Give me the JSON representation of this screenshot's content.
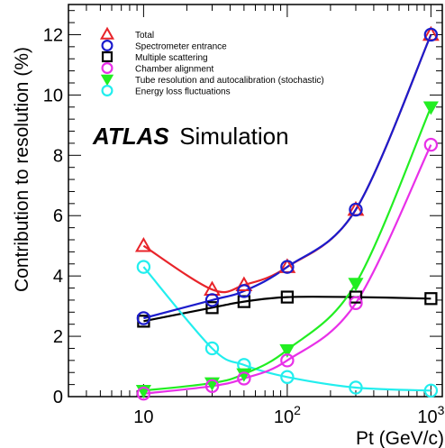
{
  "chart_data": {
    "type": "line",
    "xlabel": "Pt (GeV/c)",
    "ylabel": "Contribution to resolution (%)",
    "x_scale": "log",
    "xlim": [
      3,
      1200
    ],
    "ylim": [
      0,
      13
    ],
    "y_ticks": [
      "0",
      "2",
      "4",
      "6",
      "8",
      "10",
      "12"
    ],
    "x_ticks": [
      {
        "value": 10,
        "base": "10",
        "exp": ""
      },
      {
        "value": 100,
        "base": "10",
        "exp": "2"
      },
      {
        "value": 1000,
        "base": "10",
        "exp": "3"
      }
    ],
    "annotation": {
      "bold": "ATLAS",
      "normal": "Simulation"
    },
    "grid": false,
    "legend_position": "top-left",
    "series": [
      {
        "name": "Total",
        "color": "#e8242a",
        "marker": "triangle-up-open",
        "x": [
          10,
          30,
          50,
          100,
          300,
          1000
        ],
        "y": [
          5.0,
          3.55,
          3.7,
          4.3,
          6.2,
          12.0
        ]
      },
      {
        "name": "Spectrometer entrance",
        "color": "#1c1ccc",
        "marker": "circle-open",
        "x": [
          10,
          30,
          50,
          100,
          300,
          1000
        ],
        "y": [
          2.6,
          3.2,
          3.5,
          4.3,
          6.2,
          12.0
        ]
      },
      {
        "name": "Multiple scattering",
        "color": "#000000",
        "marker": "square-open",
        "x": [
          10,
          30,
          50,
          100,
          300,
          1000
        ],
        "y": [
          2.5,
          2.95,
          3.15,
          3.3,
          3.3,
          3.25
        ]
      },
      {
        "name": "Chamber alignment",
        "color": "#e830e8",
        "marker": "circle-open",
        "x": [
          10,
          30,
          50,
          100,
          300,
          1000
        ],
        "y": [
          0.1,
          0.35,
          0.6,
          1.2,
          3.1,
          8.35
        ]
      },
      {
        "name": "Tube resolution and autocalibration (stochastic)",
        "color": "#22ee22",
        "marker": "triangle-down-filled",
        "x": [
          10,
          30,
          50,
          100,
          300,
          1000
        ],
        "y": [
          0.2,
          0.45,
          0.75,
          1.55,
          3.75,
          9.6
        ]
      },
      {
        "name": "Energy loss fluctuations",
        "color": "#22eeee",
        "marker": "circle-open",
        "x": [
          10,
          30,
          50,
          100,
          300,
          1000
        ],
        "y": [
          4.3,
          1.6,
          1.05,
          0.65,
          0.3,
          0.2
        ]
      }
    ]
  }
}
